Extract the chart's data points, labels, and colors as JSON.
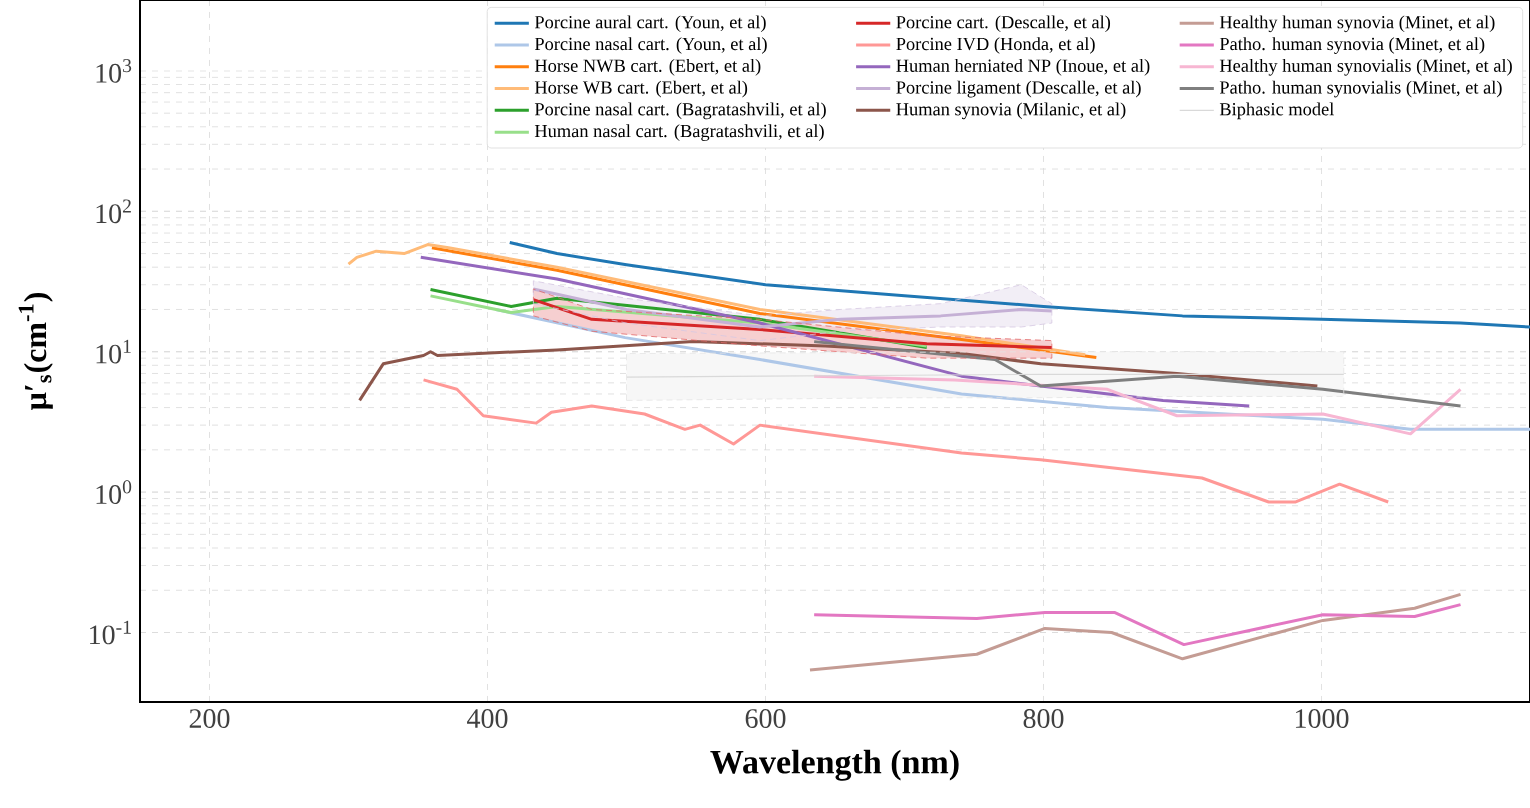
{
  "chart_data": {
    "type": "line",
    "xlabel": "Wavelength (nm)",
    "ylabel": "μ′$_{s}$(cm$^{-1}$)",
    "xlim": [
      150,
      1150
    ],
    "ylim": [
      0.032,
      3200
    ],
    "log": "y",
    "grid": true,
    "legend": "top right",
    "xticks": [
      200,
      400,
      600,
      800,
      1000
    ],
    "yticks": [
      {
        "value": 0.1,
        "label": "10$^{-1}$"
      },
      {
        "value": 1,
        "label": "10$^{0}$"
      },
      {
        "value": 10,
        "label": "10$^{1}$"
      },
      {
        "value": 100,
        "label": "10$^{2}$"
      },
      {
        "value": 1000,
        "label": "10$^{3}$"
      }
    ],
    "series": [
      {
        "name": "Porcine aural cart. (Youn, et al)",
        "color": "#1f77b4",
        "x": [
          416,
          450,
          500,
          600,
          700,
          800,
          900,
          1000,
          1100,
          1150
        ],
        "values": [
          60,
          50,
          41.6,
          30,
          25,
          21,
          18,
          17,
          16,
          15
        ]
      },
      {
        "name": "Porcine nasal cart. (Youn, et al)",
        "color": "#aec7e8",
        "x": [
          406,
          499,
          596,
          741,
          846,
          1001,
          1064,
          1150
        ],
        "values": [
          20,
          12.6,
          8.8,
          5.0,
          4.0,
          3.3,
          2.8,
          2.8
        ]
      },
      {
        "name": "Horse NWB cart. (Ebert, et al)",
        "color": "#ff7f0e",
        "x": [
          360,
          450,
          596,
          741,
          838
        ],
        "values": [
          55,
          38,
          18.7,
          12.2,
          9.1
        ]
      },
      {
        "name": "Horse WB cart. (Ebert, et al)",
        "color": "#ffbb78",
        "x": [
          300,
          306,
          320,
          340,
          357,
          372,
          450,
          596,
          741,
          830
        ],
        "values": [
          42,
          47,
          52,
          50,
          58,
          55,
          40,
          20,
          13,
          9.5
        ]
      },
      {
        "name": "Porcine nasal cart. (Bagratashvili, et al)",
        "color": "#2ca02c",
        "x": [
          359,
          417,
          450,
          596,
          716
        ],
        "values": [
          27.7,
          21,
          24,
          17,
          10.7
        ]
      },
      {
        "name": "Human nasal cart. (Bagratashvili, et al)",
        "color": "#98df8a",
        "x": [
          359,
          417,
          450,
          596,
          716
        ],
        "values": [
          25,
          19,
          21,
          16,
          11
        ]
      },
      {
        "name": "Porcine cart. (Descalle, et al)",
        "color": "#d62728",
        "x": [
          433,
          475,
          596,
          716,
          806
        ],
        "values": [
          23.5,
          17,
          14.4,
          11.4,
          10.7
        ],
        "lower": [
          18,
          14,
          11,
          9,
          9
        ],
        "upper": [
          28,
          20,
          17,
          13,
          12
        ]
      },
      {
        "name": "Porcine IVD (Honda, et al)",
        "color": "#ff9896",
        "x": [
          354,
          378,
          397,
          435,
          446,
          475,
          513,
          542,
          553,
          577,
          596,
          741,
          798,
          914,
          962,
          981,
          1013,
          1048
        ],
        "values": [
          6.3,
          5.4,
          3.5,
          3.1,
          3.7,
          4.1,
          3.6,
          2.8,
          3.0,
          2.2,
          3.0,
          1.9,
          1.7,
          1.26,
          0.85,
          0.85,
          1.14,
          0.85
        ]
      },
      {
        "name": "Human herniated NP (Inoue, et al)",
        "color": "#9467bd",
        "x": [
          352,
          450,
          596,
          741,
          798,
          886,
          948
        ],
        "values": [
          47,
          33,
          16,
          6.7,
          5.7,
          4.5,
          4.1
        ]
      },
      {
        "name": "Porcine ligament (Descalle, et al)",
        "color": "#c5b0d5",
        "x": [
          433,
          500,
          596,
          654,
          726,
          784,
          806
        ],
        "values": [
          28,
          20,
          15,
          17,
          18,
          20,
          19.5
        ],
        "lower": [
          22,
          16,
          12,
          14,
          15,
          15,
          16
        ],
        "upper": [
          32,
          24,
          18,
          20,
          22,
          30,
          22
        ]
      },
      {
        "name": "Human synovia (Milanic, et al)",
        "color": "#8c564b",
        "x": [
          308,
          325,
          354,
          359,
          364,
          450,
          548,
          643,
          741,
          798,
          896,
          997
        ],
        "values": [
          4.5,
          8.2,
          9.4,
          10,
          9.4,
          10.3,
          11.8,
          11,
          9.7,
          8.2,
          7.0,
          5.7
        ]
      },
      {
        "name": "Healthy human synovia (Minet, et al)",
        "color": "#c49c94",
        "x": [
          632,
          752,
          801,
          849,
          900,
          1001,
          1067,
          1100
        ],
        "values": [
          0.054,
          0.07,
          0.107,
          0.1,
          0.065,
          0.122,
          0.149,
          0.187
        ]
      },
      {
        "name": "Patho. human synovia (Minet, et al)",
        "color": "#e377c2",
        "x": [
          635,
          752,
          801,
          851,
          901,
          1001,
          1067,
          1100
        ],
        "values": [
          0.134,
          0.126,
          0.139,
          0.139,
          0.082,
          0.134,
          0.13,
          0.158
        ]
      },
      {
        "name": "Healthy human synovialis (Minet, et al)",
        "color": "#f7b6d2",
        "x": [
          635,
          736,
          846,
          896,
          1001,
          1064,
          1100
        ],
        "values": [
          6.7,
          6.3,
          5.4,
          3.5,
          3.6,
          2.6,
          5.4
        ]
      },
      {
        "name": "Patho. human synovialis (Minet, et al)",
        "color": "#7f7f7f",
        "x": [
          635,
          765,
          798,
          896,
          1001,
          1100
        ],
        "values": [
          11.8,
          8.8,
          5.7,
          6.7,
          5.4,
          4.1
        ]
      },
      {
        "name": "Biphasic model",
        "color": "#d9d9d9",
        "x": [
          500,
          600,
          700,
          800,
          900,
          1016
        ],
        "values": [
          6.6,
          6.7,
          6.8,
          6.9,
          6.9,
          6.9
        ],
        "lower": [
          4.5,
          4.6,
          4.7,
          4.7,
          4.8,
          4.8
        ],
        "upper": [
          9.7,
          9.8,
          9.9,
          10,
          10,
          10
        ]
      }
    ]
  }
}
